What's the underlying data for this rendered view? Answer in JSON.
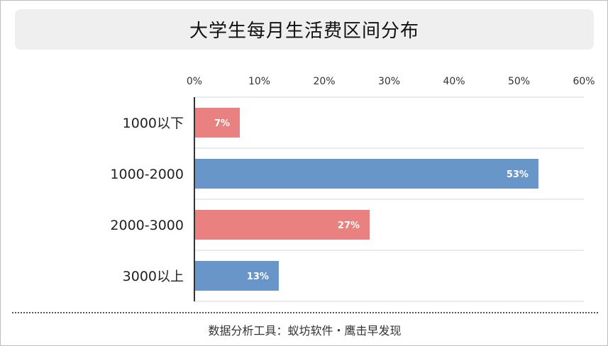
{
  "chart_data": {
    "type": "bar",
    "orientation": "horizontal",
    "title": "大学生每月生活费区间分布",
    "categories": [
      "1000以下",
      "1000-2000",
      "2000-3000",
      "3000以上"
    ],
    "values": [
      7,
      53,
      27,
      13
    ],
    "data_labels": [
      "7%",
      "53%",
      "27%",
      "13%"
    ],
    "bar_colors": [
      "#e98181",
      "#6996c9",
      "#e98181",
      "#6996c9"
    ],
    "x_ticks": [
      "0%",
      "10%",
      "20%",
      "30%",
      "40%",
      "50%",
      "60%"
    ],
    "xlim": [
      0,
      60
    ],
    "x_axis_position": "top",
    "grid": true,
    "xlabel": "",
    "ylabel": ""
  },
  "footer": {
    "text": "数据分析工具：蚁坊软件・鹰击早发现"
  }
}
